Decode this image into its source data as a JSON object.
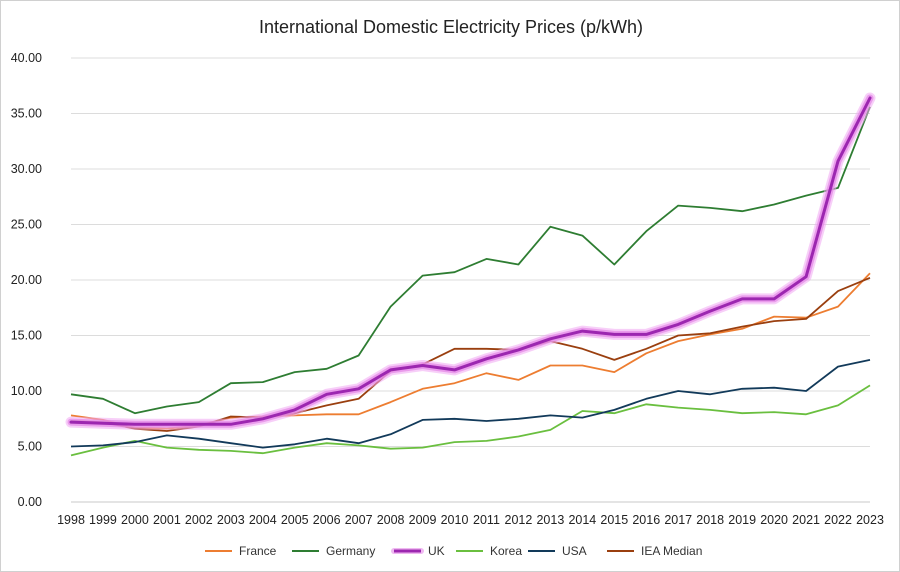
{
  "chart_data": {
    "type": "line",
    "title": "International Domestic Electricity Prices (p/kWh)",
    "xlabel": "",
    "ylabel": "",
    "ylim": [
      0,
      40
    ],
    "yticks": [
      "0.00",
      "5.00",
      "10.00",
      "15.00",
      "20.00",
      "25.00",
      "30.00",
      "35.00",
      "40.00"
    ],
    "grid": true,
    "legend_position": "bottom",
    "categories": [
      "1998",
      "1999",
      "2000",
      "2001",
      "2002",
      "2003",
      "2004",
      "2005",
      "2006",
      "2007",
      "2008",
      "2009",
      "2010",
      "2011",
      "2012",
      "2013",
      "2014",
      "2015",
      "2016",
      "2017",
      "2018",
      "2019",
      "2020",
      "2021",
      "2022",
      "2023"
    ],
    "series": [
      {
        "name": "France",
        "color": "#ed7d31",
        "highlight": false,
        "values": [
          7.8,
          7.4,
          6.7,
          6.6,
          6.9,
          7.6,
          7.7,
          7.8,
          7.9,
          7.9,
          9.0,
          10.2,
          10.7,
          11.6,
          11.0,
          12.3,
          12.3,
          11.7,
          13.4,
          14.5,
          15.1,
          15.6,
          16.7,
          16.6,
          17.6,
          20.6
        ]
      },
      {
        "name": "Germany",
        "color": "#2e7d32",
        "highlight": false,
        "values": [
          9.7,
          9.3,
          8.0,
          8.6,
          9.0,
          10.7,
          10.8,
          11.7,
          12.0,
          13.2,
          17.6,
          20.4,
          20.7,
          21.9,
          21.4,
          24.8,
          24.0,
          21.4,
          24.4,
          26.7,
          26.5,
          26.2,
          26.8,
          27.6,
          28.3,
          35.6
        ]
      },
      {
        "name": "UK",
        "color": "#9c27b0",
        "highlight": true,
        "values": [
          7.2,
          7.1,
          7.0,
          7.0,
          7.0,
          7.0,
          7.5,
          8.3,
          9.7,
          10.2,
          11.9,
          12.3,
          11.9,
          12.9,
          13.7,
          14.7,
          15.4,
          15.1,
          15.1,
          16.0,
          17.2,
          18.3,
          18.3,
          20.3,
          30.7,
          36.4
        ]
      },
      {
        "name": "Korea",
        "color": "#6abf3f",
        "highlight": false,
        "values": [
          4.2,
          4.9,
          5.5,
          4.9,
          4.7,
          4.6,
          4.4,
          4.9,
          5.3,
          5.1,
          4.8,
          4.9,
          5.4,
          5.5,
          5.9,
          6.5,
          8.2,
          8.0,
          8.8,
          8.5,
          8.3,
          8.0,
          8.1,
          7.9,
          8.7,
          10.5
        ]
      },
      {
        "name": "USA",
        "color": "#123a5a",
        "highlight": false,
        "values": [
          5.0,
          5.1,
          5.4,
          6.0,
          5.7,
          5.3,
          4.9,
          5.2,
          5.7,
          5.3,
          6.1,
          7.4,
          7.5,
          7.3,
          7.5,
          7.8,
          7.6,
          8.3,
          9.3,
          10.0,
          9.7,
          10.2,
          10.3,
          10.0,
          12.2,
          12.8
        ]
      },
      {
        "name": "IEA Median",
        "color": "#9a3f0f",
        "highlight": false,
        "values": [
          7.3,
          7.2,
          6.6,
          6.4,
          6.8,
          7.7,
          7.6,
          8.0,
          8.7,
          9.3,
          11.8,
          12.4,
          13.8,
          13.8,
          13.7,
          14.5,
          13.8,
          12.8,
          13.8,
          15.0,
          15.2,
          15.8,
          16.3,
          16.5,
          19.0,
          20.2
        ]
      }
    ]
  }
}
